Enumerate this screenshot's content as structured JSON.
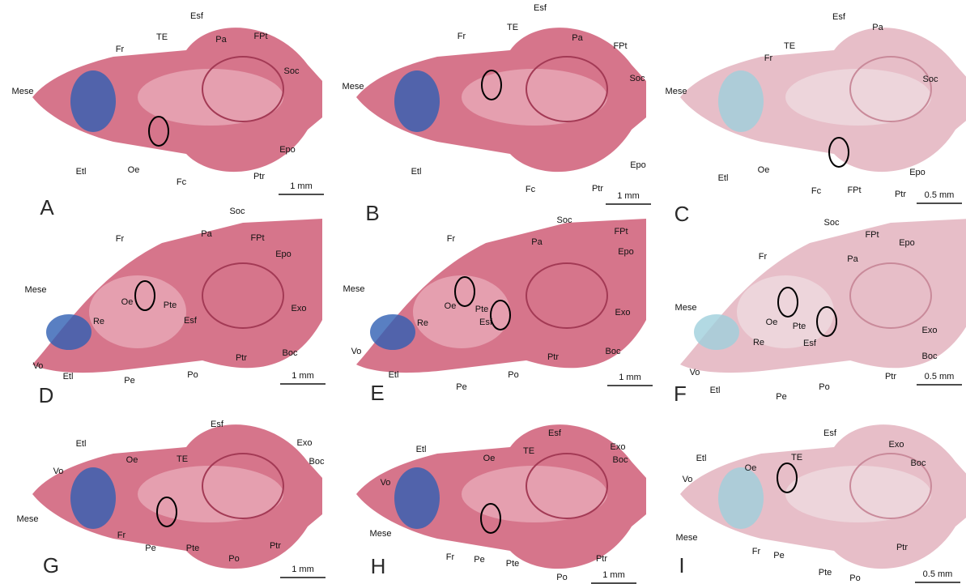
{
  "panels": [
    {
      "letter": "A",
      "scale": "1 mm",
      "labels": [
        "Mese",
        "Fr",
        "TE",
        "Esf",
        "Pa",
        "FPt",
        "Soc",
        "Etl",
        "Oe",
        "Fc",
        "Ptr",
        "Epo"
      ]
    },
    {
      "letter": "B",
      "scale": "1 mm",
      "labels": [
        "Mese",
        "Fr",
        "TE",
        "Esf",
        "Pa",
        "FPt",
        "Soc",
        "Etl",
        "Fc",
        "Ptr",
        "Epo"
      ]
    },
    {
      "letter": "C",
      "scale": "0.5 mm",
      "labels": [
        "Mese",
        "Fr",
        "TE",
        "Esf",
        "Pa",
        "Soc",
        "Etl",
        "Oe",
        "Fc",
        "FPt",
        "Ptr",
        "Epo"
      ]
    },
    {
      "letter": "D",
      "scale": "1 mm",
      "labels": [
        "Fr",
        "Pa",
        "Soc",
        "FPt",
        "Epo",
        "Mese",
        "Oe",
        "Pte",
        "Re",
        "Esf",
        "Exo",
        "Vo",
        "Etl",
        "Pe",
        "Po",
        "Ptr",
        "Boc"
      ]
    },
    {
      "letter": "E",
      "scale": "1 mm",
      "labels": [
        "Pa",
        "Soc",
        "FPt",
        "Epo",
        "Fr",
        "Mese",
        "Oe",
        "Pte",
        "Esf",
        "Re",
        "Exo",
        "Vo",
        "Etl",
        "Pe",
        "Po",
        "Ptr",
        "Boc"
      ]
    },
    {
      "letter": "F",
      "scale": "0.5 mm",
      "labels": [
        "Soc",
        "FPt",
        "Epo",
        "Pa",
        "Fr",
        "Mese",
        "Oe",
        "Pte",
        "Re",
        "Esf",
        "Exo",
        "Boc",
        "Vo",
        "Etl",
        "Po",
        "Ptr",
        "Pe"
      ]
    },
    {
      "letter": "G",
      "scale": "1 mm",
      "labels": [
        "Esf",
        "Etl",
        "Oe",
        "TE",
        "Exo",
        "Vo",
        "Boc",
        "Mese",
        "Fr",
        "Pe",
        "Pte",
        "Po",
        "Ptr"
      ]
    },
    {
      "letter": "H",
      "scale": "1 mm",
      "labels": [
        "Esf",
        "Etl",
        "Oe",
        "TE",
        "Exo",
        "Vo",
        "Boc",
        "Mese",
        "Fr",
        "Pe",
        "Pte",
        "Ptr",
        "Po"
      ]
    },
    {
      "letter": "I",
      "scale": "0.5 mm",
      "labels": [
        "Esf",
        "Etl",
        "Oe",
        "TE",
        "Exo",
        "Vo",
        "Boc",
        "Mese",
        "Fr",
        "Pe",
        "Pte",
        "Po",
        "Ptr"
      ]
    }
  ]
}
